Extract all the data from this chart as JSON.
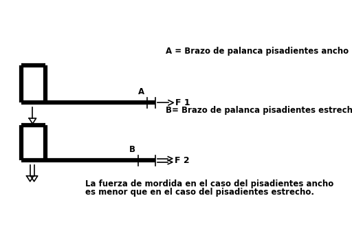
{
  "bg_color": "#ffffff",
  "text_color": "#000000",
  "label_A": "A = Brazo de palanca pisadientes ancho",
  "label_B": "B= Brazo de palanca pisadientes estrecho",
  "label_bottom_1": "La fuerza de mordida en el caso del pisadientes ancho",
  "label_bottom_2": "es menor que en el caso del pisadientes estrecho.",
  "label_F1": "F 1",
  "label_F2": "F 2",
  "label_a": "A",
  "label_b": "B",
  "lw_thick": 4.5,
  "lw_thin": 1.2
}
